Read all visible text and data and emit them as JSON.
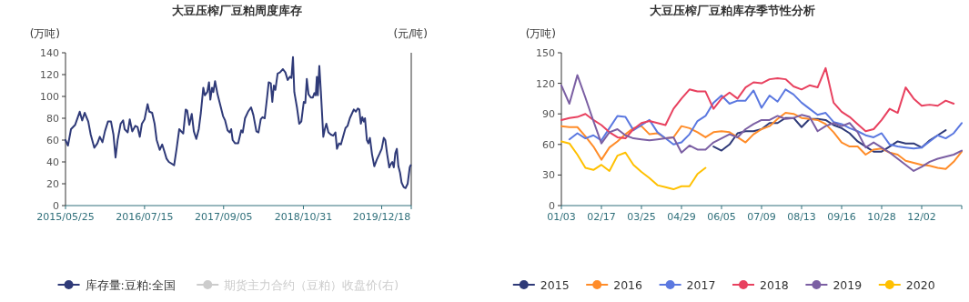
{
  "chart_data": [
    {
      "type": "line",
      "title": "大豆压榨厂豆粕周度库存",
      "ylabel": "(万吨)",
      "y2label": "(元/吨)",
      "legend": "bottom",
      "xlim": [
        "2015-05-25",
        "2020-05-22"
      ],
      "xticks": [
        {
          "value": "2015-05-25",
          "label": "2015/05/25"
        },
        {
          "value": "2016-07-15",
          "label": "2016/07/15"
        },
        {
          "value": "2017-09-05",
          "label": "2017/09/05"
        },
        {
          "value": "2018-10-31",
          "label": "2018/10/31"
        },
        {
          "value": "2019-12-18",
          "label": "2019/12/18"
        }
      ],
      "ylim": [
        0,
        140
      ],
      "yticks": [
        0,
        20,
        40,
        60,
        80,
        100,
        120,
        140
      ],
      "series": [
        {
          "name": "库存量:豆粕:全国",
          "color": "#2f3a78",
          "x": [
            "2015-05-25",
            "2015-06-07",
            "2015-06-23",
            "2015-07-15",
            "2015-08-08",
            "2015-08-21",
            "2015-09-03",
            "2015-09-22",
            "2015-10-05",
            "2015-10-24",
            "2015-11-09",
            "2015-11-22",
            "2015-12-06",
            "2015-12-19",
            "2016-01-04",
            "2016-01-20",
            "2016-02-02",
            "2016-02-13",
            "2016-02-24",
            "2016-03-11",
            "2016-03-24",
            "2016-04-01",
            "2016-04-17",
            "2016-04-28",
            "2016-05-11",
            "2016-05-27",
            "2016-06-08",
            "2016-06-20",
            "2016-07-01",
            "2016-07-15",
            "2016-07-31",
            "2016-08-09",
            "2016-08-24",
            "2016-09-06",
            "2016-09-17",
            "2016-10-03",
            "2016-10-16",
            "2016-10-27",
            "2016-11-08",
            "2016-11-20",
            "2016-12-18",
            "2016-12-31",
            "2017-01-14",
            "2017-02-04",
            "2017-02-17",
            "2017-02-25",
            "2017-03-08",
            "2017-03-21",
            "2017-04-01",
            "2017-04-14",
            "2017-04-27",
            "2017-05-08",
            "2017-05-21",
            "2017-05-29",
            "2017-06-11",
            "2017-06-20",
            "2017-06-27",
            "2017-07-06",
            "2017-07-13",
            "2017-07-22",
            "2017-08-04",
            "2017-08-20",
            "2017-09-02",
            "2017-09-13",
            "2017-09-26",
            "2017-10-07",
            "2017-10-15",
            "2017-10-23",
            "2017-11-05",
            "2017-11-21",
            "2017-12-07",
            "2017-12-15",
            "2017-12-27",
            "2018-01-12",
            "2018-01-28",
            "2018-02-09",
            "2018-02-25",
            "2018-03-08",
            "2018-03-20",
            "2018-03-29",
            "2018-04-10",
            "2018-04-23",
            "2018-05-01",
            "2018-05-12",
            "2018-05-20",
            "2018-05-28",
            "2018-06-05",
            "2018-06-17",
            "2018-06-29",
            "2018-07-15",
            "2018-07-28",
            "2018-08-09",
            "2018-08-21",
            "2018-08-29",
            "2018-09-06",
            "2018-09-13",
            "2018-09-27",
            "2018-10-09",
            "2018-10-20",
            "2018-11-02",
            "2018-11-10",
            "2018-11-18",
            "2018-11-27",
            "2018-12-09",
            "2018-12-20",
            "2018-12-28",
            "2019-01-04",
            "2019-01-10",
            "2019-01-15",
            "2019-01-23",
            "2019-01-31",
            "2019-02-13",
            "2019-02-21",
            "2019-03-01",
            "2019-03-12",
            "2019-03-25",
            "2019-04-06",
            "2019-04-18",
            "2019-04-26",
            "2019-05-07",
            "2019-05-17",
            "2019-05-28",
            "2019-06-10",
            "2019-06-21",
            "2019-07-03",
            "2019-07-16",
            "2019-07-24",
            "2019-08-04",
            "2019-08-14",
            "2019-08-22",
            "2019-08-30",
            "2019-09-07",
            "2019-09-15",
            "2019-09-21",
            "2019-10-01",
            "2019-10-09",
            "2019-10-17",
            "2019-10-28",
            "2019-11-09",
            "2019-11-22",
            "2019-12-08",
            "2019-12-18",
            "2019-12-29",
            "2020-01-06",
            "2020-01-16",
            "2020-01-27",
            "2020-02-04",
            "2020-02-12",
            "2020-02-20",
            "2020-02-28",
            "2020-03-07",
            "2020-03-15",
            "2020-03-24",
            "2020-04-01",
            "2020-04-12",
            "2020-04-22",
            "2020-05-03",
            "2020-05-14",
            "2020-05-19"
          ],
          "values": [
            60,
            55,
            70,
            74,
            86,
            78,
            85,
            77,
            65,
            53,
            57,
            63,
            58,
            68,
            77,
            77,
            65,
            44,
            60,
            75,
            78,
            70,
            67,
            79,
            68,
            73,
            72,
            63,
            75,
            79,
            93,
            86,
            85,
            75,
            60,
            51,
            56,
            50,
            43,
            40,
            37,
            52,
            70,
            66,
            88,
            87,
            74,
            84,
            68,
            61,
            70,
            85,
            108,
            101,
            104,
            113,
            97,
            108,
            104,
            114,
            102,
            91,
            82,
            78,
            69,
            67,
            70,
            60,
            57,
            57,
            69,
            67,
            80,
            86,
            90,
            83,
            68,
            67,
            79,
            81,
            80,
            100,
            113,
            112,
            95,
            110,
            106,
            121,
            122,
            125,
            122,
            115,
            118,
            117,
            136,
            104,
            90,
            75,
            77,
            95,
            94,
            116,
            102,
            99,
            99,
            103,
            101,
            118,
            101,
            128,
            105,
            63,
            70,
            75,
            67,
            65,
            64,
            67,
            52,
            57,
            56,
            63,
            71,
            73,
            80,
            85,
            88,
            86,
            89,
            88,
            75,
            81,
            77,
            80,
            60,
            57,
            62,
            47,
            36,
            42,
            48,
            52,
            62,
            60,
            47,
            35,
            38,
            40,
            35,
            48,
            52,
            36,
            30,
            21,
            17,
            16,
            20,
            35,
            37
          ]
        },
        {
          "name": "期货主力合约（豆粕）收盘价(右)",
          "color": "#cccccc"
        }
      ]
    },
    {
      "type": "line",
      "title": "大豆压榨厂豆粕库存季节性分析",
      "ylabel": "(万吨)",
      "legend": "bottom",
      "categories": [
        "01/03",
        null,
        null,
        null,
        null,
        "02/17",
        null,
        null,
        null,
        null,
        "03/25",
        null,
        null,
        null,
        null,
        "04/29",
        null,
        null,
        null,
        null,
        "06/05",
        null,
        null,
        null,
        null,
        "07/09",
        null,
        null,
        null,
        null,
        "08/13",
        null,
        null,
        null,
        null,
        "09/16",
        null,
        null,
        null,
        null,
        "10/28",
        null,
        null,
        null,
        null,
        "12/02",
        null,
        null,
        null,
        null,
        null
      ],
      "ylim": [
        0,
        150
      ],
      "yticks": [
        0,
        30,
        60,
        90,
        120,
        150
      ],
      "series": [
        {
          "name": "2015",
          "color": "#2f3a78",
          "values": [
            null,
            null,
            null,
            null,
            null,
            null,
            null,
            null,
            null,
            null,
            null,
            null,
            null,
            null,
            null,
            null,
            null,
            null,
            null,
            58,
            54,
            60,
            71,
            73,
            73,
            75,
            81,
            81,
            86,
            86,
            77,
            85,
            85,
            84,
            79,
            76,
            71,
            63,
            58,
            53,
            53,
            58,
            63,
            61,
            61,
            57,
            64,
            69,
            74,
            null,
            null
          ]
        },
        {
          "name": "2016",
          "color": "#ff8c29",
          "values": [
            78,
            77,
            77,
            68,
            58,
            45,
            57,
            63,
            70,
            76,
            78,
            70,
            71,
            66,
            67,
            78,
            76,
            72,
            67,
            72,
            73,
            72,
            67,
            62,
            70,
            75,
            78,
            85,
            91,
            90,
            86,
            85,
            84,
            80,
            72,
            62,
            58,
            58,
            50,
            55,
            56,
            52,
            50,
            44,
            42,
            40,
            39,
            37,
            36,
            43,
            53
          ]
        },
        {
          "name": "2017",
          "color": "#5b78e0",
          "values": [
            null,
            65,
            71,
            66,
            69,
            64,
            76,
            88,
            87,
            74,
            79,
            84,
            72,
            66,
            60,
            62,
            70,
            83,
            88,
            101,
            108,
            100,
            103,
            103,
            113,
            96,
            108,
            102,
            114,
            109,
            101,
            95,
            89,
            91,
            82,
            80,
            76,
            73,
            69,
            67,
            71,
            60,
            58,
            57,
            56,
            57,
            63,
            69,
            66,
            71,
            81
          ]
        },
        {
          "name": "2018",
          "color": "#e8415f",
          "values": [
            84,
            86,
            87,
            90,
            84,
            79,
            72,
            67,
            66,
            75,
            81,
            83,
            81,
            79,
            95,
            105,
            114,
            112,
            112,
            95,
            105,
            111,
            105,
            116,
            121,
            120,
            124,
            125,
            124,
            117,
            114,
            118,
            116,
            135,
            101,
            92,
            87,
            80,
            73,
            75,
            84,
            95,
            91,
            116,
            105,
            98,
            99,
            98,
            103,
            100,
            null
          ]
        },
        {
          "name": "2019",
          "color": "#7b5fa3",
          "values": [
            118,
            100,
            128,
            106,
            83,
            61,
            72,
            75,
            69,
            66,
            65,
            64,
            65,
            66,
            67,
            52,
            59,
            55,
            55,
            62,
            66,
            70,
            67,
            75,
            80,
            84,
            84,
            88,
            85,
            86,
            89,
            87,
            73,
            78,
            81,
            78,
            81,
            72,
            57,
            62,
            57,
            52,
            46,
            40,
            34,
            38,
            43,
            46,
            48,
            50,
            54
          ]
        },
        {
          "name": "2020",
          "color": "#ffc000",
          "values": [
            63,
            61,
            50,
            37,
            35,
            40,
            34,
            49,
            52,
            40,
            33,
            27,
            20,
            18,
            16,
            19,
            19,
            31,
            37,
            null,
            null,
            null,
            null,
            null,
            null,
            null,
            null,
            null,
            null,
            null,
            null,
            null,
            null,
            null,
            null,
            null,
            null,
            null,
            null,
            null,
            null,
            null,
            null,
            null,
            null,
            null,
            null,
            null,
            null,
            null,
            null
          ]
        }
      ]
    }
  ]
}
